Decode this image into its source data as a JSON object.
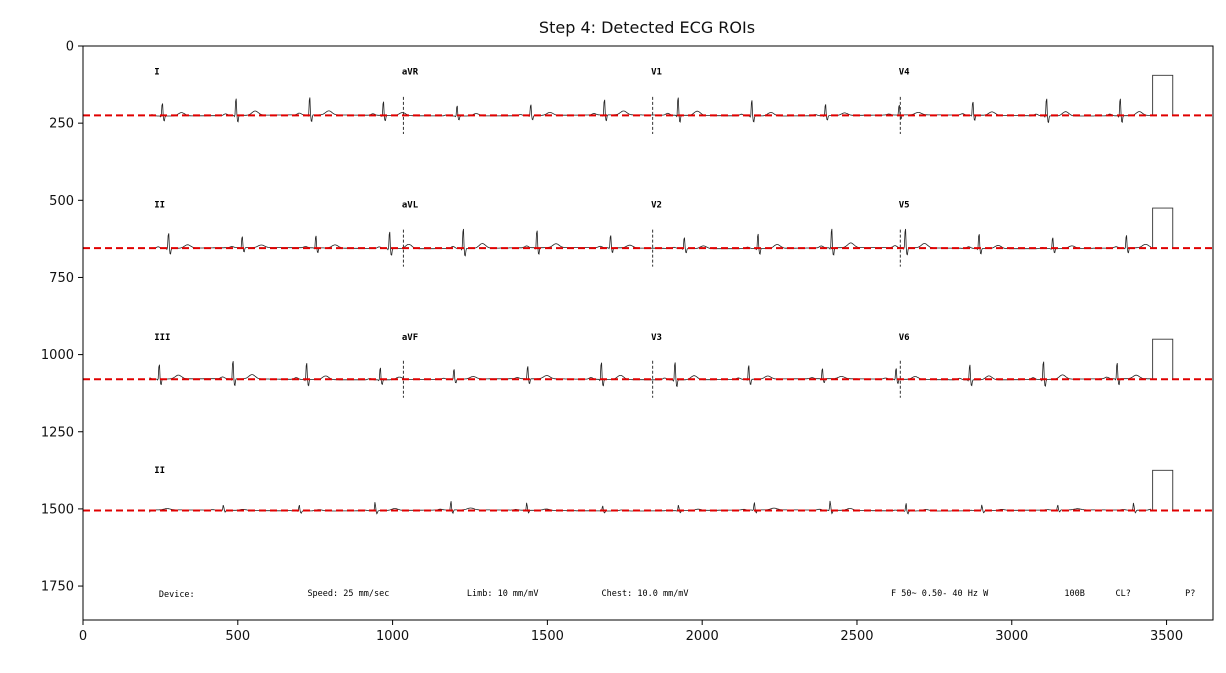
{
  "chart_data": {
    "type": "line",
    "title": "Step 4: Detected ECG ROIs",
    "xlabel": "",
    "ylabel": "",
    "xlim": [
      0,
      3650
    ],
    "ylim": [
      1860,
      0
    ],
    "y_inverted": true,
    "xticks": [
      0,
      500,
      1000,
      1500,
      2000,
      2500,
      3000,
      3500
    ],
    "yticks": [
      0,
      250,
      500,
      750,
      1000,
      1250,
      1500,
      1750
    ],
    "grid": false,
    "legend": "none",
    "baseline_color": "#e00000",
    "trace_color": "#222222",
    "roi_baselines_y": [
      225,
      655,
      1080,
      1505
    ],
    "lead_labels": [
      {
        "text": "I",
        "x": 230,
        "y": 80
      },
      {
        "text": "aVR",
        "x": 1030,
        "y": 80
      },
      {
        "text": "V1",
        "x": 1835,
        "y": 80
      },
      {
        "text": "V4",
        "x": 2635,
        "y": 80
      },
      {
        "text": "II",
        "x": 230,
        "y": 510
      },
      {
        "text": "aVL",
        "x": 1030,
        "y": 510
      },
      {
        "text": "V2",
        "x": 1835,
        "y": 510
      },
      {
        "text": "V5",
        "x": 2635,
        "y": 510
      },
      {
        "text": "III",
        "x": 230,
        "y": 940
      },
      {
        "text": "aVF",
        "x": 1030,
        "y": 940
      },
      {
        "text": "V3",
        "x": 1835,
        "y": 940
      },
      {
        "text": "V6",
        "x": 2635,
        "y": 940
      },
      {
        "text": "II",
        "x": 230,
        "y": 1370
      }
    ],
    "footer_labels": [
      {
        "text": "Device:",
        "x": 245,
        "y": 1775
      },
      {
        "text": "Speed: 25 mm/sec",
        "x": 725,
        "y": 1772
      },
      {
        "text": "Limb: 10 mm/mV",
        "x": 1240,
        "y": 1772
      },
      {
        "text": "Chest: 10.0 mm/mV",
        "x": 1675,
        "y": 1772
      },
      {
        "text": "F 50~ 0.50- 40 Hz W",
        "x": 2610,
        "y": 1772
      },
      {
        "text": "100B",
        "x": 3170,
        "y": 1772
      },
      {
        "text": "CL?",
        "x": 3335,
        "y": 1772
      },
      {
        "text": "P?",
        "x": 3560,
        "y": 1772
      }
    ]
  }
}
